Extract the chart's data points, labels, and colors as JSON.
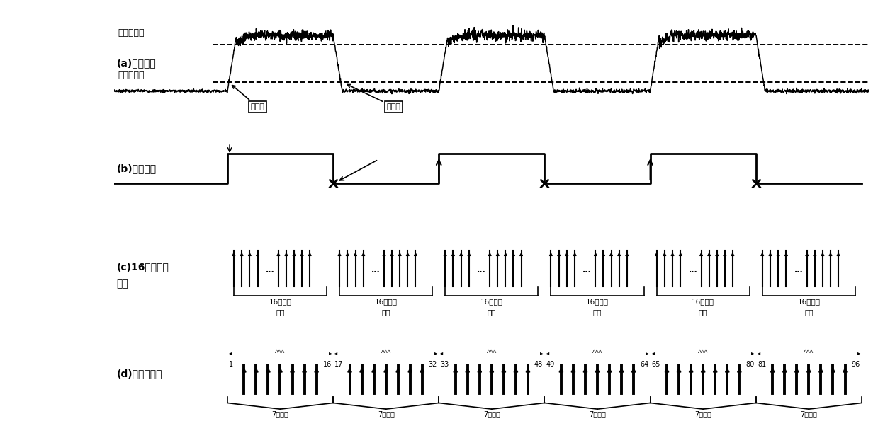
{
  "bg_color": "#ffffff",
  "panel_labels_a": "(a)模拟信号",
  "panel_labels_b": "(b)数字信号",
  "panel_labels_c1": "(c)16倍过采样",
  "panel_labels_c2": "脉冲",
  "panel_labels_d": "(d)投票判决窗",
  "high_threshold_label": "高电半门限",
  "low_threshold_label": "低电半门限",
  "glitch_label1": "毛刺点",
  "glitch_label2": "毛刺点",
  "sampling_label1": "16个采用",
  "sampling_label2": "脉冲",
  "vote_label": "7个脉冲",
  "window_pairs": [
    [
      "1",
      "16"
    ],
    [
      "17",
      "32"
    ],
    [
      "33",
      "48"
    ],
    [
      "49",
      "64"
    ],
    [
      "65",
      "80"
    ],
    [
      "81",
      "96"
    ]
  ]
}
